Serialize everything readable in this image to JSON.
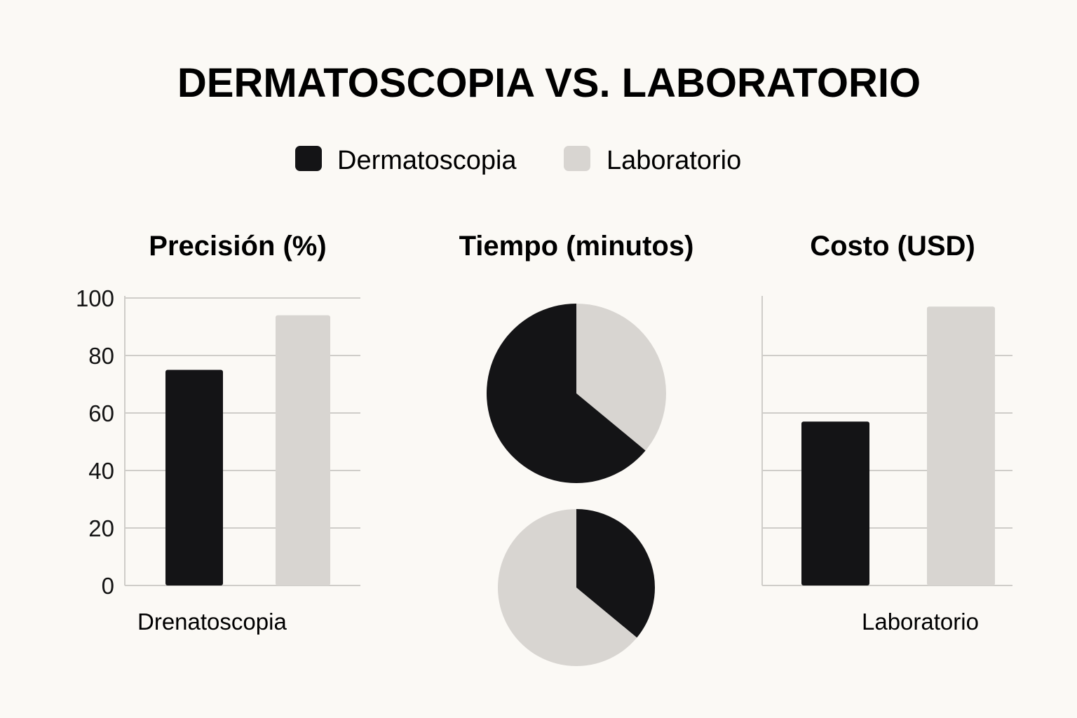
{
  "title": "DERMATOSCOPIA VS. LABORATORIO",
  "legend": {
    "items": [
      {
        "label": "Dermatoscopia",
        "color": "#141416"
      },
      {
        "label": "Laboratorio",
        "color": "#d8d5d1"
      }
    ]
  },
  "chart_data": [
    {
      "type": "bar",
      "title": "Precisión (%)",
      "categories": [
        "Dermatoscopia",
        "Laboratorio"
      ],
      "series": [
        {
          "name": "Dermatoscopia",
          "values": [
            75,
            null
          ]
        },
        {
          "name": "Laboratorio",
          "values": [
            null,
            94
          ]
        }
      ],
      "values": [
        75,
        94
      ],
      "ylim": [
        0,
        100
      ],
      "yticks": [
        0,
        20,
        40,
        60,
        80,
        100
      ],
      "xlabel": "Drenatoscopia",
      "ylabel": "",
      "grid": true
    },
    {
      "type": "pie",
      "title": "Tiempo (minutos)",
      "pies": [
        {
          "slices": [
            {
              "label": "Dermatoscopia",
              "value": 64
            },
            {
              "label": "Laboratorio",
              "value": 36
            }
          ]
        },
        {
          "slices": [
            {
              "label": "Dermatoscopia",
              "value": 36
            },
            {
              "label": "Laboratorio",
              "value": 64
            }
          ]
        }
      ]
    },
    {
      "type": "bar",
      "title": "Costo (USD)",
      "categories": [
        "Dermatoscopia",
        "Laboratorio"
      ],
      "series": [
        {
          "name": "Dermatoscopia",
          "values": [
            57,
            null
          ]
        },
        {
          "name": "Laboratorio",
          "values": [
            null,
            97
          ]
        }
      ],
      "values": [
        57,
        97
      ],
      "ylim": [
        0,
        100
      ],
      "yticks": [],
      "xlabel": "Laboratorio",
      "ylabel": "",
      "grid": true
    }
  ]
}
